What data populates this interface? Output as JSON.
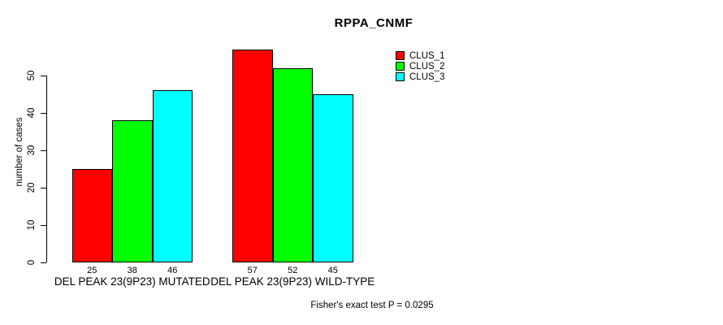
{
  "chart_data": {
    "type": "bar",
    "title": "RPPA_CNMF",
    "ylabel": "number of cases",
    "xlabel": "",
    "categories": [
      "DEL PEAK 23(9P23) MUTATED",
      "DEL PEAK 23(9P23) WILD-TYPE"
    ],
    "series": [
      {
        "name": "CLUS_1",
        "color": "#FF0000",
        "values": [
          25,
          57
        ]
      },
      {
        "name": "CLUS_2",
        "color": "#00FF00",
        "values": [
          38,
          52
        ]
      },
      {
        "name": "CLUS_3",
        "color": "#00FFFF",
        "values": [
          46,
          45
        ]
      }
    ],
    "bar_value_labels_shown": true,
    "yticks": [
      0,
      10,
      20,
      30,
      40,
      50
    ],
    "ylim": [
      0,
      57
    ],
    "grid": false,
    "legend_position": "top-right",
    "annotation": "Fisher's exact test P = 0.0295",
    "axis_color": "#000000",
    "background_color": "#FFFFFF"
  }
}
